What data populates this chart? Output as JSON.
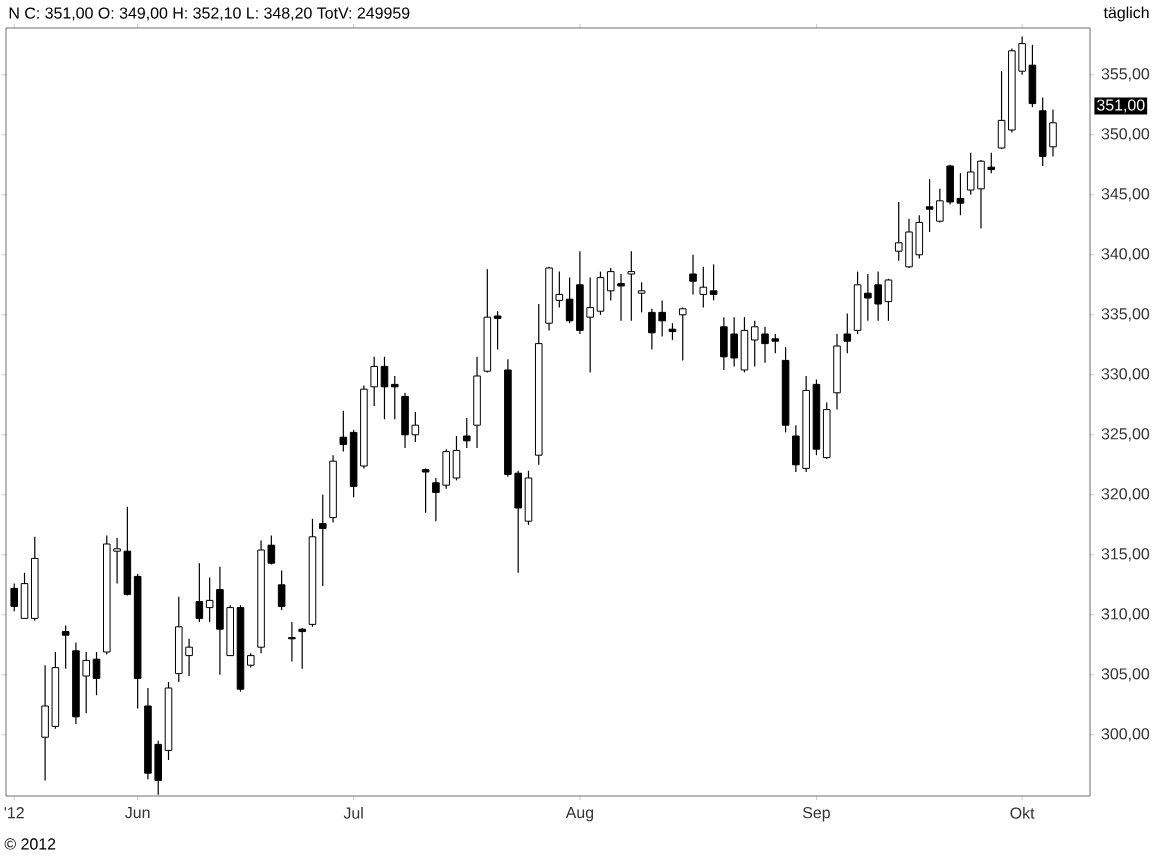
{
  "chart_data": {
    "type": "candlestick",
    "title": "N C: 351,00 O: 349,00 H: 352,10 L: 348,20 TotV: 249959",
    "categories": [
      "'12",
      null,
      null,
      null,
      null,
      null,
      null,
      null,
      null,
      null,
      null,
      null,
      "Jun",
      null,
      null,
      null,
      null,
      null,
      null,
      null,
      null,
      null,
      null,
      null,
      null,
      null,
      null,
      null,
      null,
      null,
      null,
      null,
      null,
      "Jul",
      null,
      null,
      null,
      null,
      null,
      null,
      null,
      null,
      null,
      null,
      null,
      null,
      null,
      null,
      null,
      null,
      null,
      null,
      null,
      null,
      null,
      "Aug",
      null,
      null,
      null,
      null,
      null,
      null,
      null,
      null,
      null,
      null,
      null,
      null,
      null,
      null,
      null,
      null,
      null,
      null,
      null,
      null,
      null,
      null,
      "Sep",
      null,
      null,
      null,
      null,
      null,
      null,
      null,
      null,
      null,
      null,
      null,
      null,
      null,
      null,
      null,
      null,
      null,
      null,
      null,
      "Okt",
      null,
      null,
      null
    ],
    "ohlc": [
      [
        312.2,
        312.6,
        310.3,
        310.7
      ],
      [
        309.7,
        313.5,
        309.7,
        312.6
      ],
      [
        309.7,
        316.5,
        309.5,
        314.7
      ],
      [
        299.8,
        305.8,
        296.2,
        302.4
      ],
      [
        300.7,
        306.9,
        300.5,
        305.6
      ],
      [
        308.6,
        309.1,
        305.5,
        308.3
      ],
      [
        307.0,
        307.7,
        300.9,
        301.5
      ],
      [
        304.9,
        306.9,
        301.8,
        306.2
      ],
      [
        306.3,
        306.9,
        303.3,
        304.7
      ],
      [
        306.9,
        316.6,
        306.7,
        315.9
      ],
      [
        315.3,
        316.4,
        312.6,
        315.5
      ],
      [
        315.3,
        319.0,
        311.6,
        311.7
      ],
      [
        313.2,
        313.4,
        302.2,
        304.7
      ],
      [
        302.4,
        303.9,
        296.3,
        296.8
      ],
      [
        299.2,
        299.5,
        295.0,
        296.2
      ],
      [
        298.7,
        304.4,
        297.9,
        303.9
      ],
      [
        305.1,
        311.5,
        304.4,
        309.0
      ],
      [
        306.6,
        308.0,
        304.9,
        307.3
      ],
      [
        311.1,
        314.3,
        309.4,
        309.7
      ],
      [
        310.6,
        313.1,
        309.4,
        311.2
      ],
      [
        312.1,
        314.0,
        305.0,
        308.8
      ],
      [
        306.6,
        310.8,
        306.6,
        310.6
      ],
      [
        310.6,
        310.8,
        303.6,
        303.8
      ],
      [
        305.8,
        306.8,
        305.6,
        306.6
      ],
      [
        307.3,
        316.2,
        306.8,
        315.4
      ],
      [
        315.8,
        316.6,
        314.2,
        314.3
      ],
      [
        312.5,
        313.7,
        310.4,
        310.7
      ],
      [
        308.1,
        309.4,
        306.1,
        308.0
      ],
      [
        308.8,
        308.9,
        305.5,
        308.6
      ],
      [
        309.2,
        318.0,
        309.0,
        316.5
      ],
      [
        317.6,
        320.0,
        312.4,
        317.2
      ],
      [
        318.1,
        323.3,
        317.7,
        322.8
      ],
      [
        324.8,
        327.0,
        323.6,
        324.2
      ],
      [
        325.2,
        325.4,
        319.8,
        320.7
      ],
      [
        322.4,
        329.1,
        322.2,
        328.8
      ],
      [
        329.0,
        331.5,
        327.4,
        330.7
      ],
      [
        330.7,
        331.5,
        326.3,
        329.0
      ],
      [
        329.2,
        329.9,
        326.3,
        329.0
      ],
      [
        328.2,
        328.5,
        323.9,
        325.0
      ],
      [
        325.0,
        326.9,
        324.4,
        325.8
      ],
      [
        322.1,
        322.2,
        318.5,
        321.9
      ],
      [
        321.0,
        321.4,
        317.8,
        320.2
      ],
      [
        320.8,
        323.8,
        320.5,
        323.6
      ],
      [
        321.4,
        324.9,
        321.2,
        323.7
      ],
      [
        324.9,
        326.4,
        323.9,
        324.5
      ],
      [
        325.8,
        331.5,
        323.9,
        329.9
      ],
      [
        330.3,
        338.8,
        330.2,
        334.8
      ],
      [
        334.9,
        335.3,
        332.1,
        334.7
      ],
      [
        330.4,
        331.3,
        321.5,
        321.7
      ],
      [
        321.8,
        322.0,
        313.5,
        318.9
      ],
      [
        317.8,
        322.0,
        317.5,
        321.4
      ],
      [
        323.3,
        335.9,
        322.5,
        332.6
      ],
      [
        334.3,
        339.0,
        333.7,
        338.9
      ],
      [
        336.2,
        338.6,
        335.6,
        336.7
      ],
      [
        336.3,
        338.1,
        334.3,
        334.5
      ],
      [
        337.5,
        340.3,
        333.4,
        333.7
      ],
      [
        334.8,
        338.1,
        330.2,
        335.6
      ],
      [
        335.3,
        338.6,
        335.0,
        338.1
      ],
      [
        337.0,
        338.9,
        336.2,
        338.6
      ],
      [
        337.6,
        338.4,
        334.5,
        337.4
      ],
      [
        338.4,
        340.3,
        334.5,
        338.6
      ],
      [
        336.8,
        337.7,
        335.2,
        337.0
      ],
      [
        335.2,
        335.5,
        332.1,
        333.5
      ],
      [
        335.2,
        336.2,
        333.2,
        334.5
      ],
      [
        333.8,
        334.3,
        332.9,
        333.6
      ],
      [
        335.0,
        335.6,
        331.2,
        335.5
      ],
      [
        338.4,
        340.0,
        336.7,
        337.8
      ],
      [
        336.7,
        339.0,
        335.6,
        337.3
      ],
      [
        337.0,
        339.2,
        336.2,
        336.7
      ],
      [
        334.0,
        334.8,
        330.4,
        331.5
      ],
      [
        333.4,
        334.8,
        330.7,
        331.4
      ],
      [
        330.4,
        334.8,
        330.2,
        333.7
      ],
      [
        332.9,
        334.5,
        330.7,
        334.0
      ],
      [
        333.4,
        334.0,
        331.0,
        332.6
      ],
      [
        333.0,
        333.4,
        331.8,
        332.8
      ],
      [
        331.2,
        332.3,
        325.2,
        325.8
      ],
      [
        324.9,
        325.8,
        321.9,
        322.5
      ],
      [
        322.2,
        329.9,
        321.9,
        328.7
      ],
      [
        329.2,
        329.6,
        323.3,
        323.8
      ],
      [
        323.1,
        327.7,
        323.0,
        327.1
      ],
      [
        328.5,
        333.4,
        327.1,
        332.4
      ],
      [
        333.4,
        335.1,
        331.8,
        332.8
      ],
      [
        333.7,
        338.6,
        333.4,
        337.5
      ],
      [
        336.8,
        338.4,
        334.5,
        336.4
      ],
      [
        337.5,
        338.6,
        334.5,
        335.9
      ],
      [
        336.1,
        338.0,
        334.5,
        337.9
      ],
      [
        340.3,
        344.4,
        339.5,
        341.0
      ],
      [
        339.0,
        343.0,
        338.9,
        341.9
      ],
      [
        340.0,
        343.3,
        339.7,
        342.7
      ],
      [
        344.0,
        346.3,
        341.9,
        343.8
      ],
      [
        342.8,
        345.5,
        342.7,
        344.5
      ],
      [
        347.4,
        347.5,
        344.2,
        344.4
      ],
      [
        344.7,
        346.8,
        343.3,
        344.3
      ],
      [
        345.4,
        348.5,
        345.0,
        346.9
      ],
      [
        345.5,
        347.9,
        342.2,
        347.8
      ],
      [
        347.3,
        348.5,
        346.8,
        347.1
      ],
      [
        348.9,
        355.3,
        348.8,
        351.2
      ],
      [
        350.4,
        357.2,
        350.2,
        357.0
      ],
      [
        355.3,
        358.2,
        355.0,
        357.6
      ],
      [
        355.8,
        357.5,
        352.3,
        352.6
      ],
      [
        352.0,
        353.1,
        347.4,
        348.2
      ],
      [
        349.0,
        352.1,
        348.2,
        351.0
      ]
    ],
    "ylim": [
      294.9,
      358.9
    ],
    "yticks": [
      {
        "value": 300,
        "label": "300,00"
      },
      {
        "value": 305,
        "label": "305,00"
      },
      {
        "value": 310,
        "label": "310,00"
      },
      {
        "value": 315,
        "label": "315,00"
      },
      {
        "value": 320,
        "label": "320,00"
      },
      {
        "value": 325,
        "label": "325,00"
      },
      {
        "value": 330,
        "label": "330,00"
      },
      {
        "value": 335,
        "label": "335,00"
      },
      {
        "value": 340,
        "label": "340,00"
      },
      {
        "value": 345,
        "label": "345,00"
      },
      {
        "value": 350,
        "label": "350,00"
      },
      {
        "value": 355,
        "label": "355,00"
      }
    ],
    "annotations": [
      "täglich",
      "351,00",
      "© 2012"
    ]
  }
}
